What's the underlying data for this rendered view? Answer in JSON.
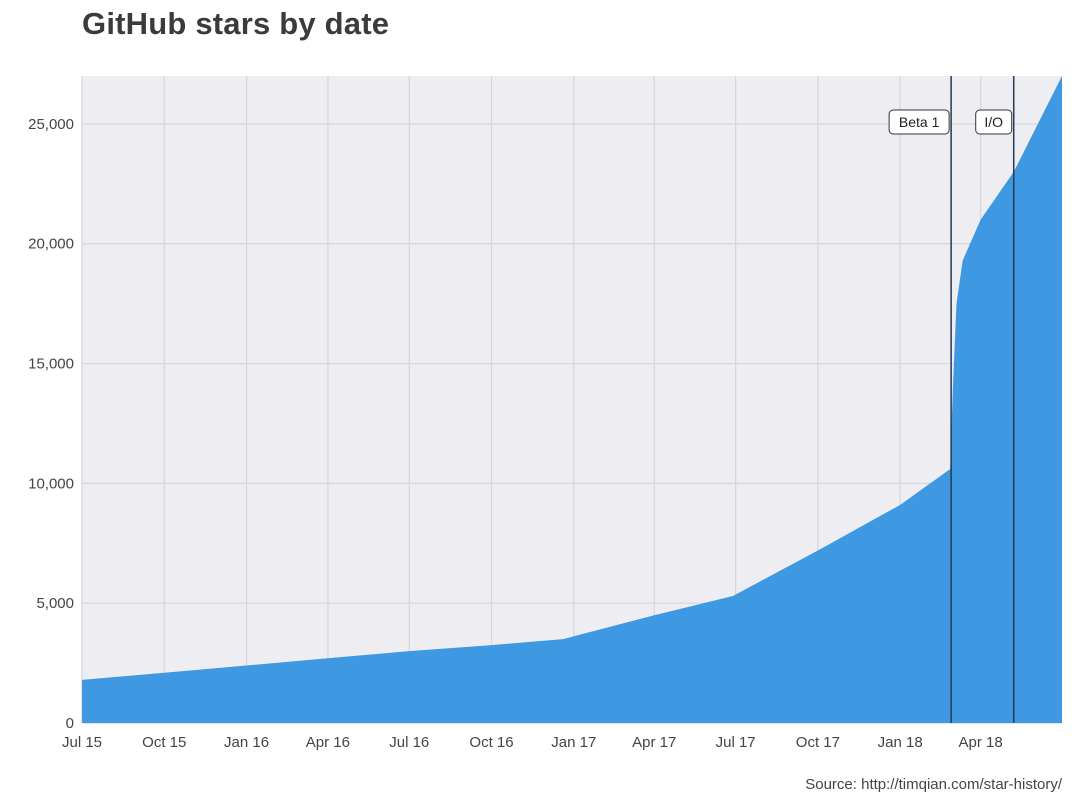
{
  "title": "GitHub stars by date",
  "source": "Source: http://timqian.com/star-history/",
  "colors": {
    "fill": "#3f98e2",
    "plot_bg": "#eeedf1",
    "grid": "#d5d5da",
    "marker": "#253a55"
  },
  "chart_data": {
    "type": "area",
    "title": "GitHub stars by date",
    "xlabel": "",
    "ylabel": "",
    "x_range": [
      "2015-07-01",
      "2018-07-01"
    ],
    "y_range": [
      0,
      27000
    ],
    "y_ticks": [
      0,
      5000,
      10000,
      15000,
      20000,
      25000
    ],
    "y_tick_labels": [
      "0",
      "5,000",
      "10,000",
      "15,000",
      "20,000",
      "25,000"
    ],
    "x_ticks": [
      "2015-07-01",
      "2015-10-01",
      "2016-01-01",
      "2016-04-01",
      "2016-07-01",
      "2016-10-01",
      "2017-01-01",
      "2017-04-01",
      "2017-07-01",
      "2017-10-01",
      "2018-01-01",
      "2018-04-01"
    ],
    "x_tick_labels": [
      "Jul 15",
      "Oct 15",
      "Jan 16",
      "Apr 16",
      "Jul 16",
      "Oct 16",
      "Jan 17",
      "Apr 17",
      "Jul 17",
      "Oct 17",
      "Jan 18",
      "Apr 18"
    ],
    "grid": true,
    "legend": "none",
    "series": [
      {
        "points": [
          {
            "x": "2015-07-01",
            "y": 1800
          },
          {
            "x": "2015-10-01",
            "y": 2100
          },
          {
            "x": "2016-01-01",
            "y": 2400
          },
          {
            "x": "2016-04-01",
            "y": 2700
          },
          {
            "x": "2016-07-01",
            "y": 3000
          },
          {
            "x": "2016-10-01",
            "y": 3250
          },
          {
            "x": "2016-12-20",
            "y": 3500
          },
          {
            "x": "2017-04-01",
            "y": 4500
          },
          {
            "x": "2017-06-28",
            "y": 5300
          },
          {
            "x": "2017-10-01",
            "y": 7200
          },
          {
            "x": "2018-01-01",
            "y": 9100
          },
          {
            "x": "2018-02-26",
            "y": 10600
          },
          {
            "x": "2018-03-01",
            "y": 14000
          },
          {
            "x": "2018-03-05",
            "y": 17500
          },
          {
            "x": "2018-03-12",
            "y": 19300
          },
          {
            "x": "2018-04-01",
            "y": 21000
          },
          {
            "x": "2018-05-08",
            "y": 23000
          },
          {
            "x": "2018-07-01",
            "y": 27000
          }
        ]
      }
    ],
    "annotations": [
      {
        "label": "Beta 1",
        "x": "2018-02-27"
      },
      {
        "label": "I/O",
        "x": "2018-05-08"
      }
    ]
  }
}
